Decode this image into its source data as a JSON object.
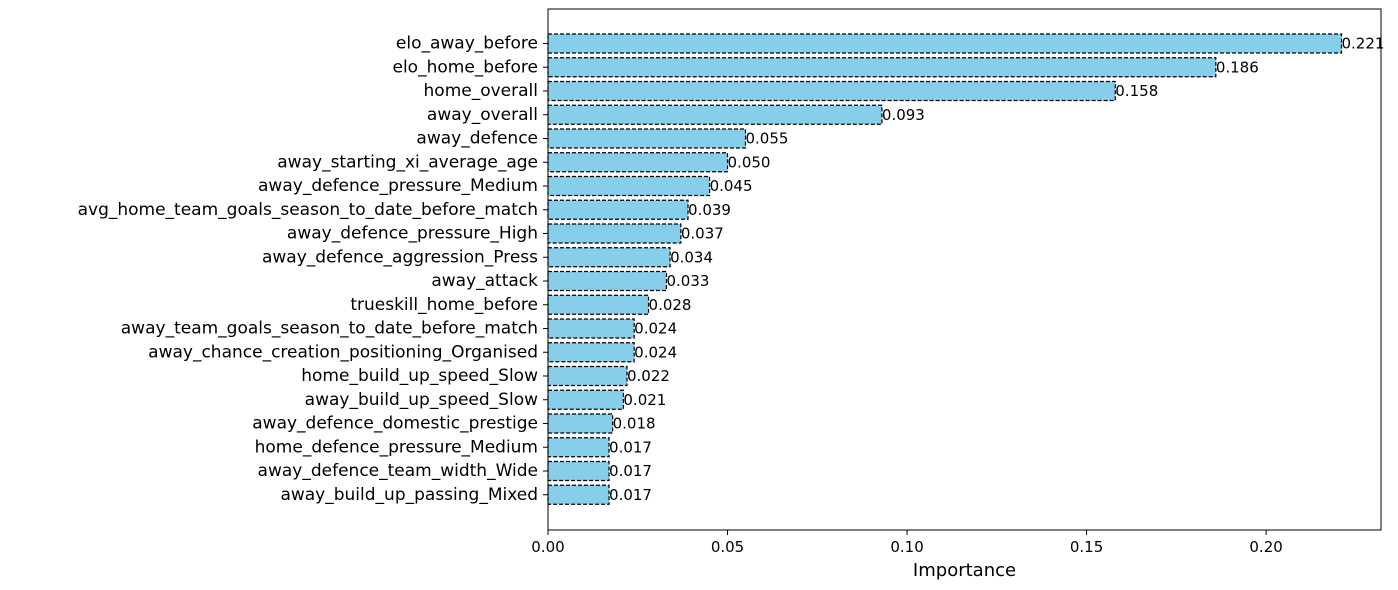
{
  "chart_data": {
    "type": "bar",
    "orientation": "horizontal",
    "categories": [
      "elo_away_before",
      "elo_home_before",
      "home_overall",
      "away_overall",
      "away_defence",
      "away_starting_xi_average_age",
      "away_defence_pressure_Medium",
      "avg_home_team_goals_season_to_date_before_match",
      "away_defence_pressure_High",
      "away_defence_aggression_Press",
      "away_attack",
      "trueskill_home_before",
      "away_team_goals_season_to_date_before_match",
      "away_chance_creation_positioning_Organised",
      "home_build_up_speed_Slow",
      "away_build_up_speed_Slow",
      "away_defence_domestic_prestige",
      "home_defence_pressure_Medium",
      "away_defence_team_width_Wide",
      "away_build_up_passing_Mixed"
    ],
    "values": [
      0.221,
      0.186,
      0.158,
      0.093,
      0.055,
      0.05,
      0.045,
      0.039,
      0.037,
      0.034,
      0.033,
      0.028,
      0.024,
      0.024,
      0.022,
      0.021,
      0.018,
      0.017,
      0.017,
      0.017
    ],
    "value_labels": [
      "0.221",
      "0.186",
      "0.158",
      "0.093",
      "0.055",
      "0.050",
      "0.045",
      "0.039",
      "0.037",
      "0.034",
      "0.033",
      "0.028",
      "0.024",
      "0.024",
      "0.022",
      "0.021",
      "0.018",
      "0.017",
      "0.017",
      "0.017"
    ],
    "title": "",
    "xlabel": "Importance",
    "ylabel": "",
    "xlim": [
      0,
      0.232
    ],
    "xticks": [
      0.0,
      0.05,
      0.1,
      0.15,
      0.2
    ],
    "xtick_labels": [
      "0.00",
      "0.05",
      "0.10",
      "0.15",
      "0.20"
    ],
    "grid": false,
    "legend": "none",
    "bar_color": "#87ceeb",
    "bar_edge_color": "#000000",
    "bar_edge_style": "dashed"
  }
}
